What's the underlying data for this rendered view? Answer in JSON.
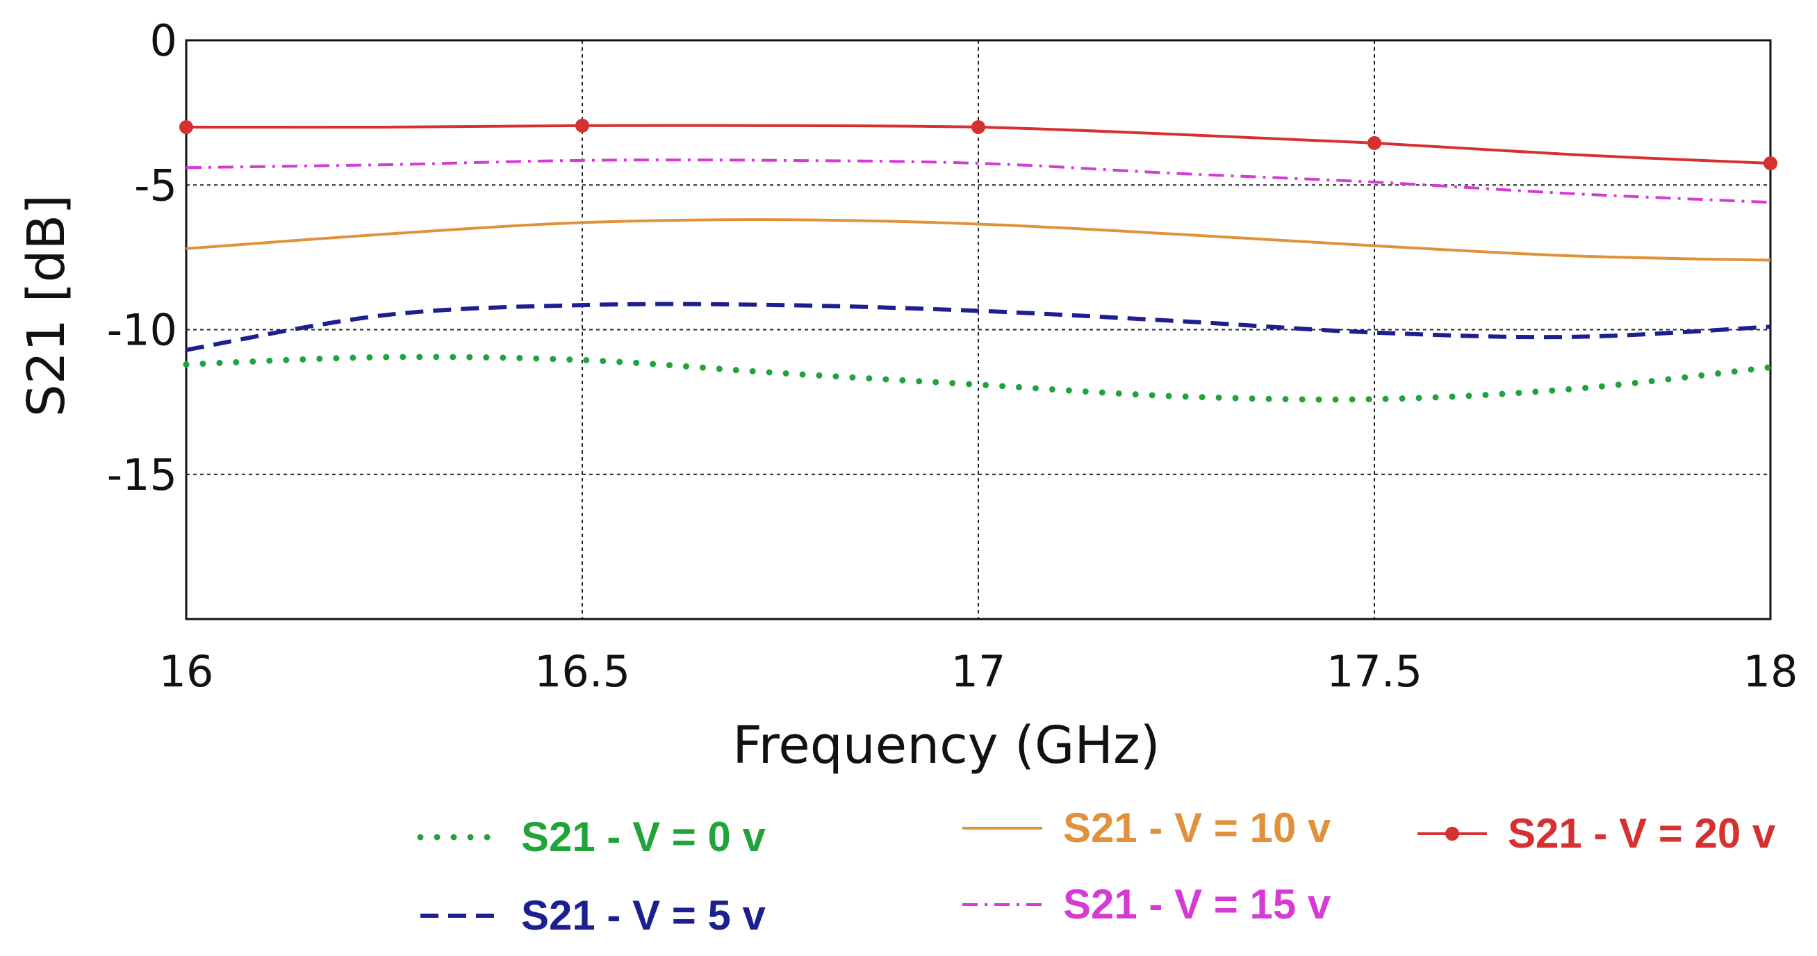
{
  "chart_data": {
    "type": "line",
    "title": "",
    "xlabel": "Frequency (GHz)",
    "ylabel": "S21  [dB]",
    "xlim": [
      16,
      18
    ],
    "ylim": [
      -20,
      0
    ],
    "x_ticks": [
      16,
      16.5,
      17,
      17.5,
      18
    ],
    "x_tick_labels": [
      "16",
      "16.5",
      "17",
      "17.5",
      "18"
    ],
    "y_ticks": [
      0,
      -5,
      -10,
      -15
    ],
    "y_tick_labels": [
      "0",
      "-5",
      "-10",
      "-15"
    ],
    "grid": true,
    "legend_position": "bottom",
    "series": [
      {
        "name": "S21 -  V = 0 v",
        "color": "#22a33a",
        "style": "dotted",
        "x": [
          16.0,
          16.25,
          16.5,
          16.75,
          17.0,
          17.25,
          17.5,
          17.75,
          18.0
        ],
        "y": [
          -11.2,
          -10.95,
          -11.05,
          -11.5,
          -11.9,
          -12.3,
          -12.4,
          -12.05,
          -11.3
        ]
      },
      {
        "name": "S21 - V = 5 v",
        "color": "#1b1f8f",
        "style": "dashed",
        "x": [
          16.0,
          16.25,
          16.5,
          16.75,
          17.0,
          17.25,
          17.5,
          17.75,
          18.0
        ],
        "y": [
          -10.7,
          -9.5,
          -9.15,
          -9.15,
          -9.35,
          -9.7,
          -10.1,
          -10.25,
          -9.9
        ]
      },
      {
        "name": "S21 - V = 10 v",
        "color": "#e0913a",
        "style": "solid",
        "x": [
          16.0,
          16.25,
          16.5,
          16.75,
          17.0,
          17.25,
          17.5,
          17.75,
          18.0
        ],
        "y": [
          -7.2,
          -6.7,
          -6.3,
          -6.2,
          -6.35,
          -6.7,
          -7.1,
          -7.45,
          -7.6
        ]
      },
      {
        "name": "S21 - V = 15 v",
        "color": "#d63ad6",
        "style": "dashdot",
        "x": [
          16.0,
          16.25,
          16.5,
          16.75,
          17.0,
          17.25,
          17.5,
          17.75,
          18.0
        ],
        "y": [
          -4.4,
          -4.3,
          -4.15,
          -4.15,
          -4.25,
          -4.6,
          -4.9,
          -5.3,
          -5.6
        ]
      },
      {
        "name": "S21 - V = 20 v",
        "color": "#d63030",
        "style": "solid-marker",
        "x": [
          16.0,
          16.25,
          16.5,
          16.75,
          17.0,
          17.25,
          17.5,
          17.75,
          18.0
        ],
        "y": [
          -3.0,
          -3.0,
          -2.95,
          -2.95,
          -3.0,
          -3.25,
          -3.55,
          -3.95,
          -4.25
        ],
        "marker_x": [
          16.0,
          16.5,
          17.0,
          17.5,
          18.0
        ],
        "marker_y": [
          -3.0,
          -2.95,
          -3.0,
          -3.55,
          -4.25
        ]
      }
    ]
  }
}
